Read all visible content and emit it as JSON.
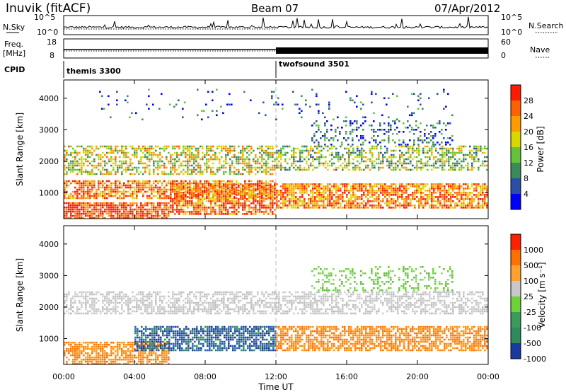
{
  "header": {
    "station": "Inuvik (fitACF)",
    "beam": "Beam 07",
    "date": "07/Apr/2012"
  },
  "summary_panels": {
    "nsky_label": "N.Sky",
    "nsky_ticks": [
      "10^5",
      "10^0"
    ],
    "nsearch_label": "N.Search",
    "nsearch_ticks": [
      "10^5",
      "10^0"
    ],
    "freq_label_top": "Freq.",
    "freq_label_bottom": "[MHz]",
    "freq_ticks": [
      "18",
      "8"
    ],
    "nave_label": "Nave",
    "nave_ticks": [
      "60",
      "0"
    ],
    "cpid_label": "CPID",
    "cpid_segments": [
      {
        "name": "themis 3300",
        "start_hour": 0
      },
      {
        "name": "twofsound 3501",
        "start_hour": 12
      }
    ]
  },
  "chart_data": [
    {
      "type": "heatmap",
      "title": "",
      "xlabel": "",
      "ylabel": "Slant Range [km]",
      "xlim_hours": [
        0,
        24
      ],
      "ylim": [
        180,
        4580
      ],
      "yticks": [
        "1000",
        "2000",
        "3000",
        "4000"
      ],
      "colorbar_label": "Power [dB]",
      "colorbar_ticks": [
        "4",
        "8",
        "12",
        "16",
        "20",
        "24",
        "28"
      ],
      "colorbar_colors": [
        "#0000ff",
        "#2a4fa3",
        "#3c8a5a",
        "#66c23a",
        "#d8d800",
        "#ff9a00",
        "#ff6000",
        "#ff1a00"
      ],
      "scatter_bands": [
        {
          "t0": 0,
          "t1": 6,
          "r0": 200,
          "r1": 700,
          "v": 0.95,
          "d": 0.85
        },
        {
          "t0": 6,
          "t1": 12,
          "r0": 300,
          "r1": 1300,
          "v": 0.85,
          "d": 0.75
        },
        {
          "t0": 0,
          "t1": 12,
          "r0": 800,
          "r1": 1400,
          "v": 0.8,
          "d": 0.7
        },
        {
          "t0": 0,
          "t1": 12,
          "r0": 1600,
          "r1": 2500,
          "v": 0.55,
          "d": 0.55
        },
        {
          "t0": 12,
          "t1": 24,
          "r0": 500,
          "r1": 1300,
          "v": 0.8,
          "d": 0.75
        },
        {
          "t0": 12,
          "t1": 24,
          "r0": 1700,
          "r1": 2500,
          "v": 0.45,
          "d": 0.5
        },
        {
          "t0": 14,
          "t1": 22,
          "r0": 2500,
          "r1": 3300,
          "v": 0.2,
          "d": 0.25
        },
        {
          "t0": 2,
          "t1": 22,
          "r0": 3300,
          "r1": 4300,
          "v": 0.15,
          "d": 0.05
        }
      ]
    },
    {
      "type": "heatmap",
      "title": "",
      "xlabel": "Time UT",
      "ylabel": "Slant Range [km]",
      "xlim_hours": [
        0,
        24
      ],
      "ylim": [
        180,
        4580
      ],
      "yticks": [
        "1000",
        "2000",
        "3000",
        "4000"
      ],
      "xticks": [
        "00:00",
        "04:00",
        "08:00",
        "12:00",
        "16:00",
        "20:00",
        "00:00"
      ],
      "colorbar_label": "Velocity [m s⁻¹]",
      "colorbar_ticks": [
        "1000",
        "500",
        "100",
        "25",
        "-25",
        "-100",
        "-500",
        "-1000"
      ],
      "colorbar_colors": [
        "#1a3aa0",
        "#2f8a60",
        "#3c9a5a",
        "#6ed23a",
        "#c8c8c8",
        "#ffa030",
        "#ff7000",
        "#ff2000"
      ],
      "scatter_bands": [
        {
          "t0": 0,
          "t1": 6,
          "r0": 200,
          "r1": 900,
          "v": "orange",
          "d": 0.7
        },
        {
          "t0": 4,
          "t1": 12,
          "r0": 600,
          "r1": 1400,
          "v": "blue",
          "d": 0.75
        },
        {
          "t0": 0,
          "t1": 12,
          "r0": 1800,
          "r1": 2500,
          "v": "gray",
          "d": 0.6
        },
        {
          "t0": 12,
          "t1": 24,
          "r0": 600,
          "r1": 1400,
          "v": "orange",
          "d": 0.7
        },
        {
          "t0": 12,
          "t1": 24,
          "r0": 1800,
          "r1": 2500,
          "v": "gray",
          "d": 0.55
        },
        {
          "t0": 14,
          "t1": 22,
          "r0": 2500,
          "r1": 3300,
          "v": "green",
          "d": 0.3
        }
      ]
    }
  ]
}
